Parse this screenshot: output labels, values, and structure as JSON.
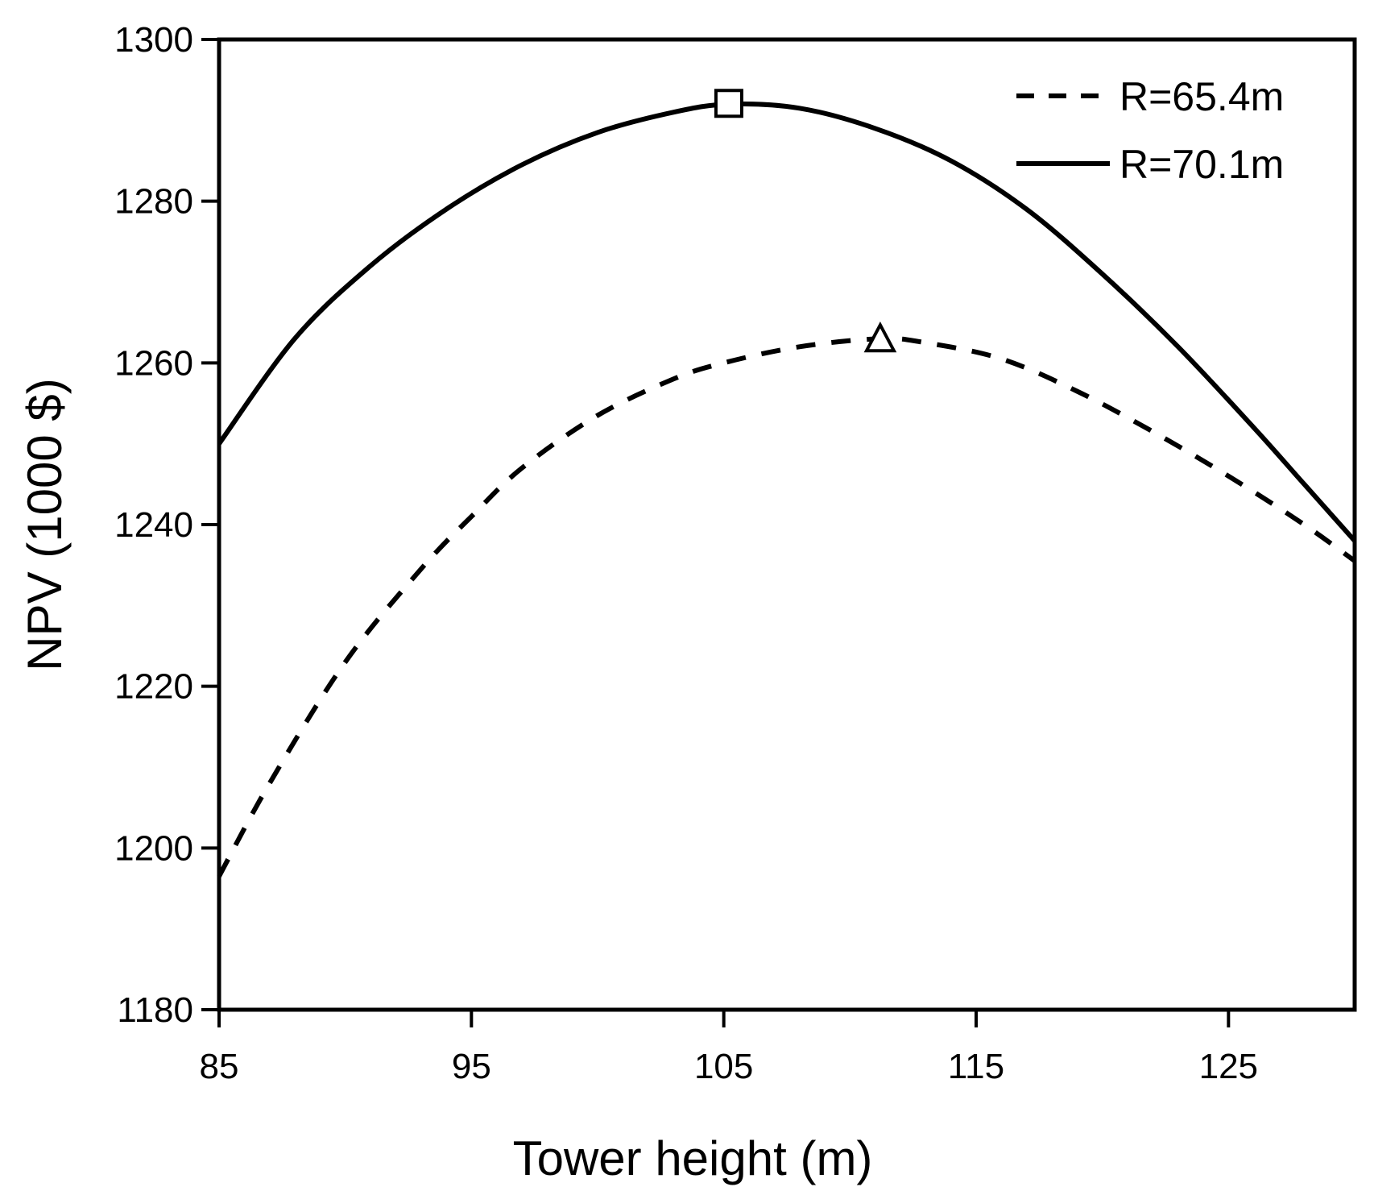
{
  "chart_data": {
    "type": "line",
    "xlabel": "Tower height (m)",
    "ylabel": "NPV (1000 $)",
    "xlim": [
      85,
      130
    ],
    "ylim": [
      1180,
      1300
    ],
    "xticks": [
      85,
      95,
      105,
      115,
      125
    ],
    "yticks": [
      1180,
      1200,
      1220,
      1240,
      1260,
      1280,
      1300
    ],
    "grid": false,
    "legend_position": "top-right",
    "series": [
      {
        "name": "R=65.4m",
        "line_style": "dashed",
        "x": [
          85,
          87,
          90,
          93,
          95,
          97,
          100,
          103,
          105,
          108,
          111.2,
          113,
          116,
          119,
          122,
          125,
          128,
          130
        ],
        "y": [
          1196.5,
          1208,
          1223,
          1234.5,
          1241,
          1247,
          1253.5,
          1258,
          1260,
          1262,
          1263,
          1262.5,
          1260.5,
          1256.5,
          1251.5,
          1246,
          1240,
          1235.5
        ],
        "marker": {
          "shape": "triangle",
          "x": 111.2,
          "y": 1262.8
        }
      },
      {
        "name": "R=70.1m",
        "line_style": "solid",
        "x": [
          85,
          88,
          91,
          94,
          97,
          100,
          103,
          105.2,
          108,
          111,
          114,
          117,
          120,
          123,
          126,
          128,
          130
        ],
        "y": [
          1250,
          1263,
          1272,
          1279,
          1284.5,
          1288.5,
          1291,
          1292,
          1291.5,
          1289,
          1285,
          1279,
          1271,
          1262,
          1252,
          1245,
          1238
        ],
        "marker": {
          "shape": "square",
          "x": 105.2,
          "y": 1292.1
        }
      }
    ]
  },
  "colors": {
    "line": "#000000",
    "marker_fill": "#ffffff",
    "background": "#ffffff"
  }
}
